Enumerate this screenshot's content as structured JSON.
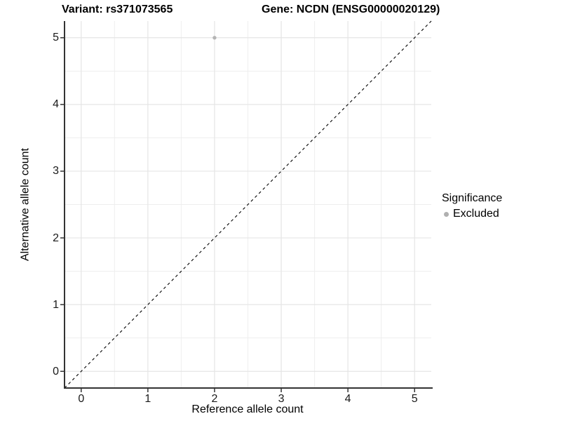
{
  "title": {
    "left": "Variant: rs371073565",
    "right": "Gene: NCDN (ENSG00000020129)"
  },
  "chart_data": {
    "type": "scatter",
    "xlabel": "Reference allele count",
    "ylabel": "Alternative allele count",
    "xlim": [
      -0.25,
      5.25
    ],
    "ylim": [
      -0.25,
      5.25
    ],
    "xticks": [
      0,
      1,
      2,
      3,
      4,
      5
    ],
    "yticks": [
      0,
      1,
      2,
      3,
      4,
      5
    ],
    "minor_ticks": [
      0.5,
      1.5,
      2.5,
      3.5,
      4.5
    ],
    "grid": true,
    "points": [
      {
        "x": 2,
        "y": 5,
        "series": "Excluded"
      }
    ],
    "reference_line": {
      "type": "identity",
      "style": "dashed",
      "from": [
        -0.25,
        -0.25
      ],
      "to": [
        5.25,
        5.25
      ],
      "color": "#000000"
    },
    "legend": {
      "title": "Significance",
      "position": "right",
      "items": [
        {
          "label": "Excluded",
          "color": "#b0b0b0"
        }
      ]
    },
    "style": {
      "point_color": "#b5b5b5",
      "axis_line_color": "#333333",
      "grid_major_color": "#e5e5e5",
      "grid_minor_color": "#eeeeee",
      "background": "#ffffff"
    }
  }
}
